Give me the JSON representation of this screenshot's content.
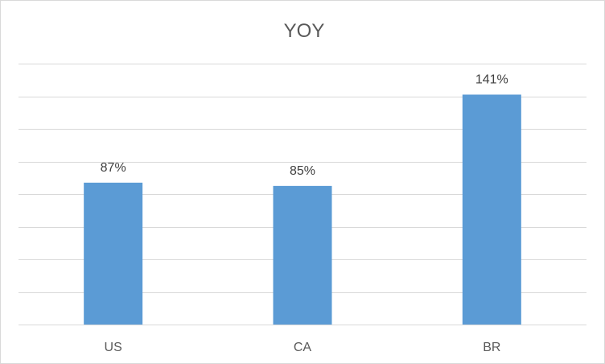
{
  "chart_data": {
    "type": "bar",
    "title": "YOY",
    "categories": [
      "US",
      "CA",
      "BR"
    ],
    "values": [
      87,
      85,
      141
    ],
    "value_labels": [
      "87%",
      "85%",
      "141%"
    ],
    "ylim": [
      0,
      160
    ],
    "grid": true,
    "bar_color": "#5b9bd5",
    "gridline_color": "#d9d9d9"
  }
}
